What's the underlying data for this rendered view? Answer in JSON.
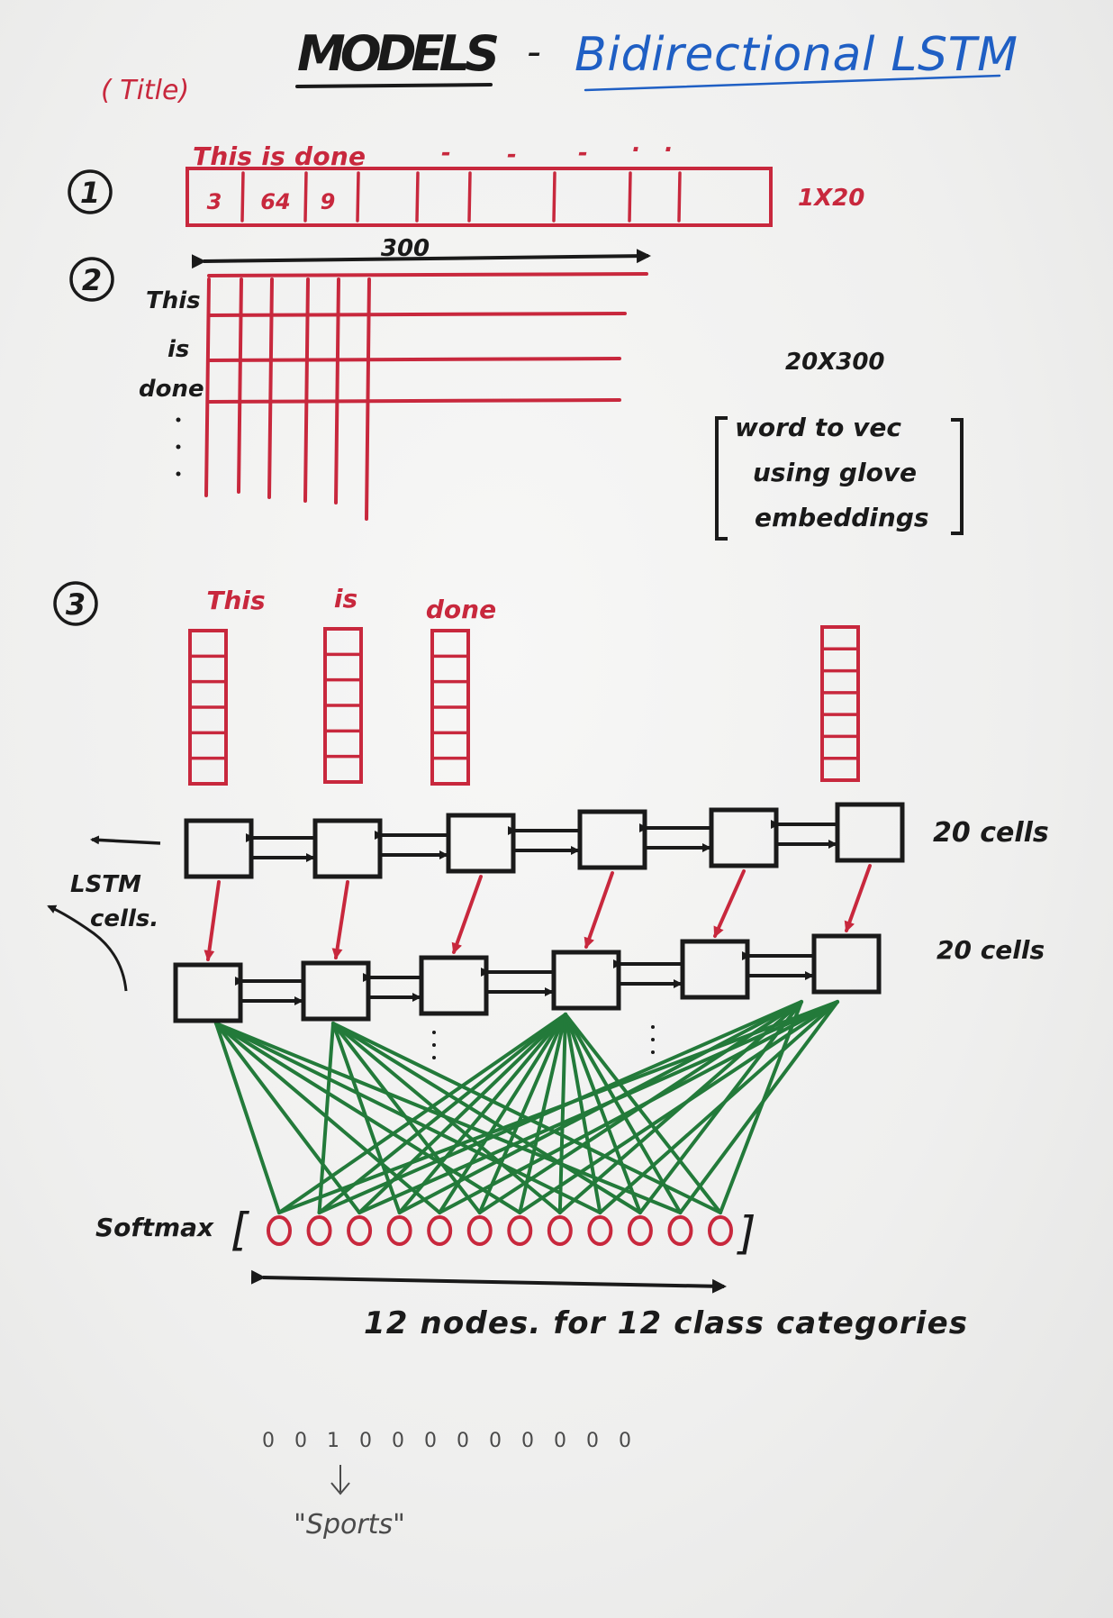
{
  "title": {
    "main": "MODELS",
    "dash": "-",
    "subtitle": "Bidirectional LSTM"
  },
  "title_note": "( Title)",
  "colors": {
    "red": "#c8283d",
    "black": "#1a1a1a",
    "blue": "#1f5fc4",
    "green": "#237a3a",
    "gray": "#4a4a4a"
  },
  "step1": {
    "number": "1",
    "caption": "This is done",
    "dots": [
      "-",
      "-",
      "-",
      ".",
      "."
    ],
    "cells": [
      "3",
      "64",
      "9"
    ],
    "shape": "1X20"
  },
  "step2": {
    "number": "2",
    "width_label": "300",
    "row_labels": [
      "This",
      "is",
      "done"
    ],
    "shape": "20X300",
    "note": [
      "word to vec",
      "using glove",
      "embeddings"
    ]
  },
  "step3": {
    "number": "3",
    "words": [
      "This",
      "is",
      "done"
    ],
    "top_label": "20 cells",
    "bottom_label": "20 cells",
    "lstm_label": [
      "LSTM",
      "cells."
    ],
    "softmax_label": "Softmax",
    "softmax_bracket_open": "[",
    "softmax_bracket_close": "]",
    "node_count": 12,
    "nodes_caption": "12 nodes. for 12 class categories",
    "onehot": [
      "0",
      "0",
      "1",
      "0",
      "0",
      "0",
      "0",
      "0",
      "0",
      "0",
      "0",
      "0"
    ],
    "output_label": "\"Sports\""
  }
}
